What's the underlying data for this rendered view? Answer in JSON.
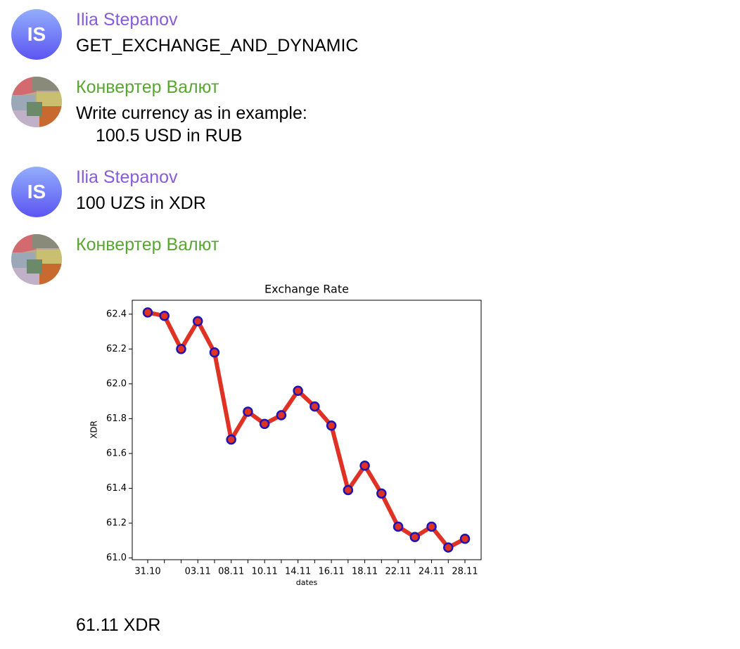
{
  "messages": [
    {
      "avatar": "IS",
      "sender": "Ilia Stepanov",
      "lines": [
        "GET_EXCHANGE_AND_DYNAMIC"
      ]
    },
    {
      "sender": "Конвертер Валют",
      "lines": [
        "Write currency as in example:",
        "100.5 USD in RUB"
      ]
    },
    {
      "avatar": "IS",
      "sender": "Ilia Stepanov",
      "lines": [
        "100 UZS in XDR"
      ]
    },
    {
      "sender": "Конвертер Валют",
      "lines": [
        "61.11 XDR"
      ]
    }
  ],
  "chart_data": {
    "type": "line",
    "title": "Exchange Rate",
    "x_label": "dates",
    "y_label": "XDR",
    "categories": [
      "31.10",
      null,
      null,
      "03.11",
      null,
      "08.11",
      null,
      "10.11",
      null,
      "14.11",
      null,
      "16.11",
      null,
      "18.11",
      null,
      "22.11",
      null,
      "24.11",
      null,
      "28.11"
    ],
    "values": [
      62.41,
      62.39,
      62.2,
      62.36,
      62.18,
      61.68,
      61.84,
      61.77,
      61.82,
      61.96,
      61.87,
      61.76,
      61.39,
      61.53,
      61.37,
      61.18,
      61.12,
      61.18,
      61.06,
      61.11
    ],
    "color": "#e03224",
    "marker_edge_color": "#1c14b4",
    "ylim": [
      60.99,
      62.48
    ],
    "yticks": [
      {
        "value": 61,
        "label": "61.0"
      },
      61.2,
      61.4,
      61.6,
      61.8,
      {
        "value": 62,
        "label": "62.0"
      },
      62.2,
      62.4
    ]
  }
}
